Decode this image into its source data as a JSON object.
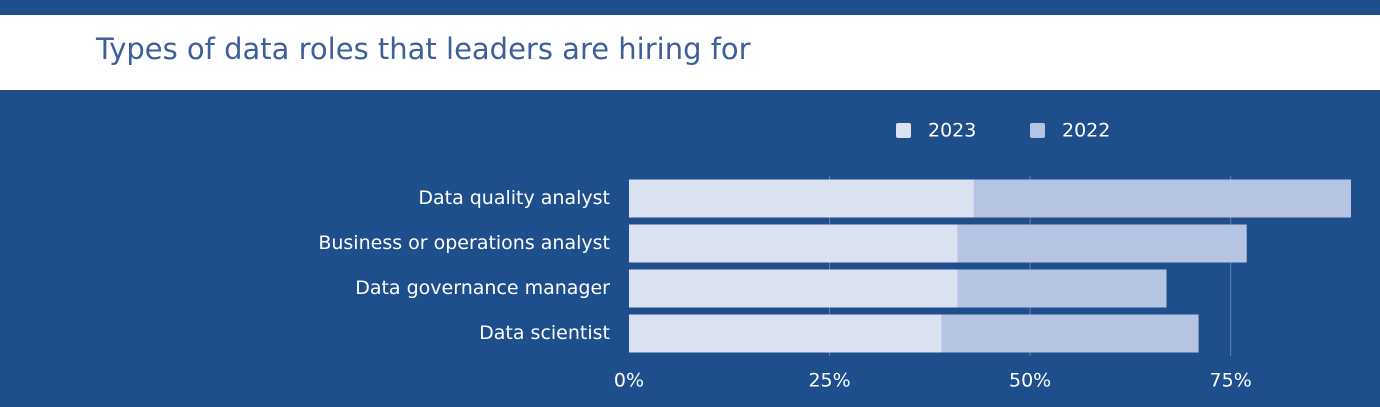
{
  "chart_data": {
    "type": "stacked-barh",
    "title": "Types of data roles that leaders are hiring for",
    "categories": [
      "Data quality analyst",
      "Business or operations analyst",
      "Data governance manager",
      "Data scientist"
    ],
    "series": [
      {
        "name": "2023",
        "color": "#dae2f2",
        "values": [
          43,
          41,
          41,
          39
        ]
      },
      {
        "name": "2022",
        "color": "#b4c4e2",
        "values": [
          47,
          36,
          26,
          32
        ]
      }
    ],
    "xlim": [
      0,
      90
    ],
    "xticks": [
      {
        "value": 0,
        "label": "0%"
      },
      {
        "value": 25,
        "label": "25%"
      },
      {
        "value": 50,
        "label": "50%"
      },
      {
        "value": 75,
        "label": "75%"
      }
    ],
    "grid": true
  }
}
